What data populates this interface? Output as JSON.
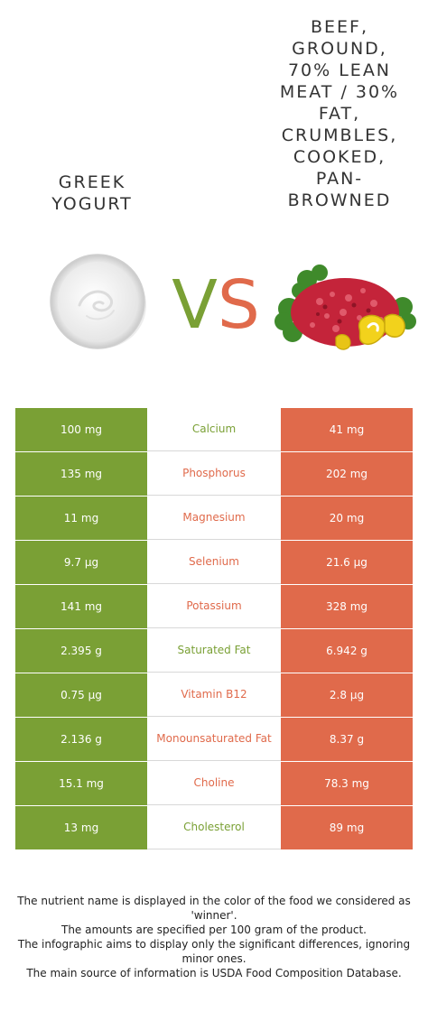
{
  "foods": {
    "left": {
      "name": "GREEK\nYOGURT",
      "icon": "greek-yogurt-bowl"
    },
    "right": {
      "name": "BEEF,\nGROUND,\n70% LEAN\nMEAT / 30%\nFAT,\nCRUMBLES,\nCOOKED,\nPAN-\nBROWNED",
      "icon": "ground-beef-with-peppers"
    }
  },
  "vs": {
    "v": "V",
    "s": "S"
  },
  "colors": {
    "left": "#7aa035",
    "right": "#e06a4b"
  },
  "rows": [
    {
      "left": "100 mg",
      "nutrient": "Calcium",
      "right": "41 mg",
      "winner": "left"
    },
    {
      "left": "135 mg",
      "nutrient": "Phosphorus",
      "right": "202 mg",
      "winner": "right"
    },
    {
      "left": "11 mg",
      "nutrient": "Magnesium",
      "right": "20 mg",
      "winner": "right"
    },
    {
      "left": "9.7 µg",
      "nutrient": "Selenium",
      "right": "21.6 µg",
      "winner": "right"
    },
    {
      "left": "141 mg",
      "nutrient": "Potassium",
      "right": "328 mg",
      "winner": "right"
    },
    {
      "left": "2.395 g",
      "nutrient": "Saturated Fat",
      "right": "6.942 g",
      "winner": "left"
    },
    {
      "left": "0.75 µg",
      "nutrient": "Vitamin B12",
      "right": "2.8 µg",
      "winner": "right"
    },
    {
      "left": "2.136 g",
      "nutrient": "Monounsaturated Fat",
      "right": "8.37 g",
      "winner": "right"
    },
    {
      "left": "15.1 mg",
      "nutrient": "Choline",
      "right": "78.3 mg",
      "winner": "right"
    },
    {
      "left": "13 mg",
      "nutrient": "Cholesterol",
      "right": "89 mg",
      "winner": "left"
    }
  ],
  "footer": [
    "The nutrient name is displayed in the color of the food we considered as 'winner'.",
    "The amounts are specified per 100 gram of the product.",
    "The infographic aims to display only the significant differences, ignoring minor ones.",
    "The main source of information is USDA Food Composition Database."
  ]
}
